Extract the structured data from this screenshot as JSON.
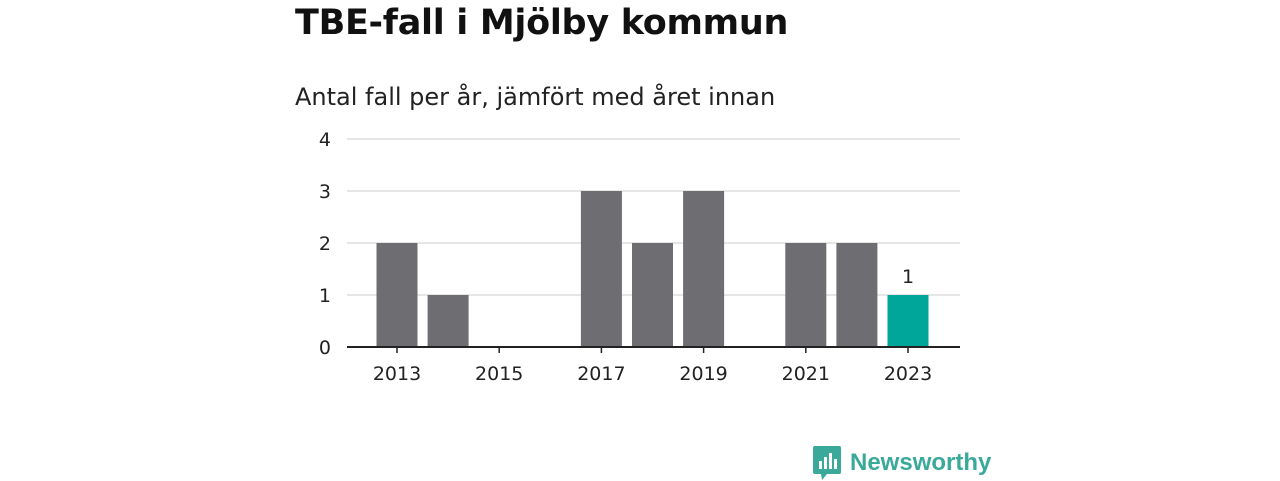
{
  "title": "TBE-fall i Mjölby kommun",
  "subtitle": "Antal fall per år, jämfört med året innan",
  "brand": {
    "name": "Newsworthy",
    "icon": "newsworthy-logo-icon",
    "color": "#3aa99a"
  },
  "colors": {
    "bar": "#6d6d72",
    "highlight": "#00a69a",
    "grid": "#dddddd",
    "axis": "#222222",
    "text": "#222222"
  },
  "chart_data": {
    "type": "bar",
    "title": "TBE-fall i Mjölby kommun",
    "subtitle": "Antal fall per år, jämfört med året innan",
    "xlabel": "",
    "ylabel": "",
    "categories": [
      "2013",
      "2014",
      "2015",
      "2016",
      "2017",
      "2018",
      "2019",
      "2020",
      "2021",
      "2022",
      "2023"
    ],
    "values": [
      2,
      1,
      0,
      0,
      3,
      2,
      3,
      0,
      2,
      2,
      1
    ],
    "highlight_index": 10,
    "highlight_label": "1",
    "x_tick_labels": [
      "2013",
      "2015",
      "2017",
      "2019",
      "2021",
      "2023"
    ],
    "y_ticks": [
      0,
      1,
      2,
      3,
      4
    ],
    "ylim": [
      0,
      4
    ],
    "grid": true,
    "legend": "none"
  }
}
